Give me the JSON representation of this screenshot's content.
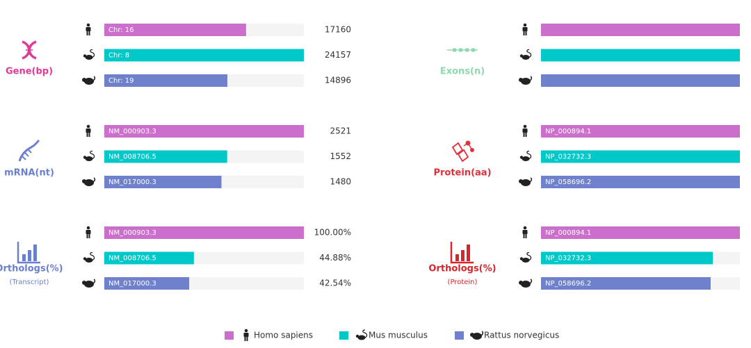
{
  "legend": [
    {
      "name": "Homo sapiens",
      "color": "#cc6fcc"
    },
    {
      "name": "Mus musculus",
      "color": "#00c8c8"
    },
    {
      "name": "Rattus norvegicus",
      "color": "#6f80cc"
    }
  ],
  "chart_data": [
    {
      "type": "bar",
      "title": "Gene(bp)",
      "title_color": "#e03c96",
      "categories": [
        "Chr: 16",
        "Chr: 8",
        "Chr: 19"
      ],
      "values": [
        17160,
        24157,
        14896
      ],
      "xlim": [
        0,
        24157
      ]
    },
    {
      "type": "bar",
      "title": "Exons(n)",
      "title_color": "#8ed8b0",
      "categories": [
        null,
        null,
        null
      ],
      "values": [
        6,
        6,
        6
      ],
      "xlim": [
        0,
        6
      ]
    },
    {
      "type": "bar",
      "title": "mRNA(nt)",
      "title_color": "#6a7fcf",
      "categories": [
        "NM_000903.3",
        "NM_008706.5",
        "NM_017000.3"
      ],
      "values": [
        2521,
        1552,
        1480
      ],
      "xlim": [
        0,
        2521
      ]
    },
    {
      "type": "bar",
      "title": "Protein(aa)",
      "title_color": "#e0303a",
      "categories": [
        "NP_000894.1",
        "NP_032732.3",
        "NP_058696.2"
      ],
      "values": [
        274,
        274,
        274
      ],
      "xlim": [
        0,
        274
      ]
    },
    {
      "type": "bar",
      "title": "Orthologs(%)",
      "subtitle": "(Transcript)",
      "title_color": "#6a7fcf",
      "categories": [
        "NM_000903.3",
        "NM_008706.5",
        "NM_017000.3"
      ],
      "values": [
        100,
        44.88,
        42.54
      ],
      "value_labels": [
        "100.00%",
        "44.88%",
        "42.54%"
      ],
      "xlim": [
        0,
        100
      ]
    },
    {
      "type": "bar",
      "title": "Orthologs(%)",
      "subtitle": "(Protein)",
      "title_color": "#d4262c",
      "categories": [
        "NP_000894.1",
        "NP_032732.3",
        "NP_058696.2"
      ],
      "values": [
        100,
        86.4,
        85.3
      ],
      "xlim": [
        0,
        100
      ]
    }
  ]
}
